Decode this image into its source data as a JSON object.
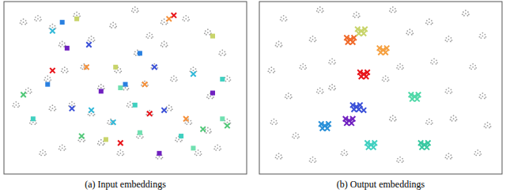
{
  "chart_data": [
    {
      "type": "scatter",
      "title": "(a) Input embeddings",
      "xlim": [
        0,
        100
      ],
      "ylim": [
        0,
        100
      ],
      "tick_labels": false,
      "series": [
        {
          "color": "#a0a0a0",
          "marker": "dot",
          "x": [
            8,
            14,
            20,
            30,
            36,
            45,
            54,
            60,
            66,
            75,
            84,
            90,
            92,
            85,
            78,
            70,
            62,
            55,
            47,
            40,
            33,
            25,
            18,
            10,
            5,
            12,
            20,
            28,
            36,
            44,
            52,
            60,
            68,
            76,
            84,
            92,
            88,
            80,
            72,
            64,
            56,
            48,
            40,
            32,
            24,
            16,
            50,
            58,
            66,
            24
          ],
          "values": [
            88,
            90,
            85,
            92,
            78,
            86,
            95,
            80,
            88,
            90,
            82,
            70,
            55,
            45,
            60,
            55,
            62,
            70,
            60,
            50,
            62,
            60,
            55,
            48,
            40,
            30,
            38,
            40,
            35,
            30,
            40,
            35,
            38,
            30,
            25,
            30,
            15,
            12,
            20,
            10,
            22,
            12,
            18,
            20,
            15,
            12,
            50,
            52,
            75,
            75
          ]
        },
        {
          "color": "#e8141a",
          "marker": "x",
          "x": [
            70,
            20,
            60,
            48
          ],
          "values": [
            92,
            60,
            35,
            18
          ]
        },
        {
          "color": "#f5903a",
          "marker": "x",
          "x": [
            68,
            34,
            58,
            75
          ],
          "values": [
            90,
            62,
            52,
            32
          ]
        },
        {
          "color": "#c8d46a",
          "marker": "square",
          "x": [
            30,
            46,
            42,
            86
          ],
          "values": [
            90,
            62,
            20,
            80
          ]
        },
        {
          "color": "#2a80e0",
          "marker": "square",
          "x": [
            24,
            56,
            50,
            18
          ],
          "values": [
            88,
            70,
            52,
            52
          ]
        },
        {
          "color": "#3a50d8",
          "marker": "x",
          "x": [
            35,
            62,
            28,
            66
          ],
          "values": [
            75,
            62,
            38,
            37
          ]
        },
        {
          "color": "#7020c0",
          "marker": "square",
          "x": [
            40,
            86,
            64,
            26
          ],
          "values": [
            48,
            47,
            12,
            73
          ]
        },
        {
          "color": "#40d0c0",
          "marker": "square",
          "x": [
            12,
            54,
            73,
            90
          ],
          "values": [
            32,
            40,
            22,
            55
          ]
        },
        {
          "color": "#30b8d8",
          "marker": "x",
          "x": [
            20,
            36,
            78,
            45
          ],
          "values": [
            83,
            37,
            58,
            30
          ]
        },
        {
          "color": "#70e0b0",
          "marker": "square",
          "x": [
            48,
            78,
            56,
            90
          ],
          "values": [
            50,
            15,
            24,
            32
          ]
        },
        {
          "color": "#50c878",
          "marker": "x",
          "x": [
            8,
            32,
            82,
            92
          ],
          "values": [
            46,
            22,
            26,
            28
          ]
        }
      ]
    },
    {
      "type": "scatter",
      "title": "(b) Output embeddings",
      "xlim": [
        0,
        100
      ],
      "ylim": [
        0,
        100
      ],
      "tick_labels": false,
      "series": [
        {
          "color": "#a0a0a0",
          "marker": "dot",
          "x": [
            10,
            25,
            40,
            55,
            70,
            85,
            8,
            22,
            62,
            78,
            92,
            5,
            18,
            30,
            58,
            72,
            88,
            12,
            25,
            52,
            78,
            92,
            6,
            15,
            55,
            80,
            94,
            8,
            22,
            35,
            58,
            78,
            90,
            30,
            70
          ],
          "values": [
            90,
            95,
            92,
            95,
            88,
            93,
            75,
            78,
            82,
            78,
            80,
            60,
            62,
            65,
            62,
            65,
            62,
            45,
            48,
            55,
            48,
            45,
            30,
            22,
            32,
            32,
            28,
            10,
            8,
            12,
            8,
            10,
            12,
            50,
            30
          ]
        },
        {
          "color": "#f06a2a",
          "marker": "x",
          "x": [
            37.5,
            39,
            36,
            38.5,
            36.5
          ],
          "values": [
            78,
            79,
            79,
            76.5,
            76.5
          ]
        },
        {
          "color": "#c8d46a",
          "marker": "x",
          "x": [
            42,
            43.5,
            40.5,
            43,
            41
          ],
          "values": [
            83,
            84,
            84,
            81.5,
            81.5
          ]
        },
        {
          "color": "#f5a040",
          "marker": "x",
          "x": [
            51,
            52.5,
            49.5,
            52,
            50
          ],
          "values": [
            72,
            73,
            73,
            70.5,
            70.5
          ]
        },
        {
          "color": "#e8141a",
          "marker": "x",
          "x": [
            43,
            44.5,
            41.5,
            44,
            42
          ],
          "values": [
            58,
            59,
            59,
            56.5,
            56.5
          ]
        },
        {
          "color": "#3a50d8",
          "marker": "x",
          "x": [
            40,
            41.5,
            38.5,
            41,
            39,
            43
          ],
          "values": [
            39,
            40,
            40,
            37.5,
            37.5,
            37
          ]
        },
        {
          "color": "#2a90d8",
          "marker": "x",
          "x": [
            27,
            28.5,
            25.5,
            28,
            26
          ],
          "values": [
            28,
            29,
            29,
            26.5,
            26.5
          ]
        },
        {
          "color": "#7020c0",
          "marker": "x",
          "x": [
            37,
            38.5,
            35.5,
            38,
            36
          ],
          "values": [
            31,
            32,
            32,
            29.5,
            29.5
          ]
        },
        {
          "color": "#50d8a8",
          "marker": "x",
          "x": [
            64,
            65.5,
            62.5,
            65,
            63
          ],
          "values": [
            45,
            46,
            46,
            43.5,
            43.5
          ]
        },
        {
          "color": "#40d0c0",
          "marker": "x",
          "x": [
            46,
            47.5,
            44.5,
            47,
            45
          ],
          "values": [
            17,
            18,
            18,
            15.5,
            15.5
          ]
        },
        {
          "color": "#38c8a0",
          "marker": "x",
          "x": [
            68,
            69.5,
            66.5,
            69,
            67
          ],
          "values": [
            17,
            18,
            18,
            15.5,
            15.5
          ]
        }
      ]
    }
  ]
}
